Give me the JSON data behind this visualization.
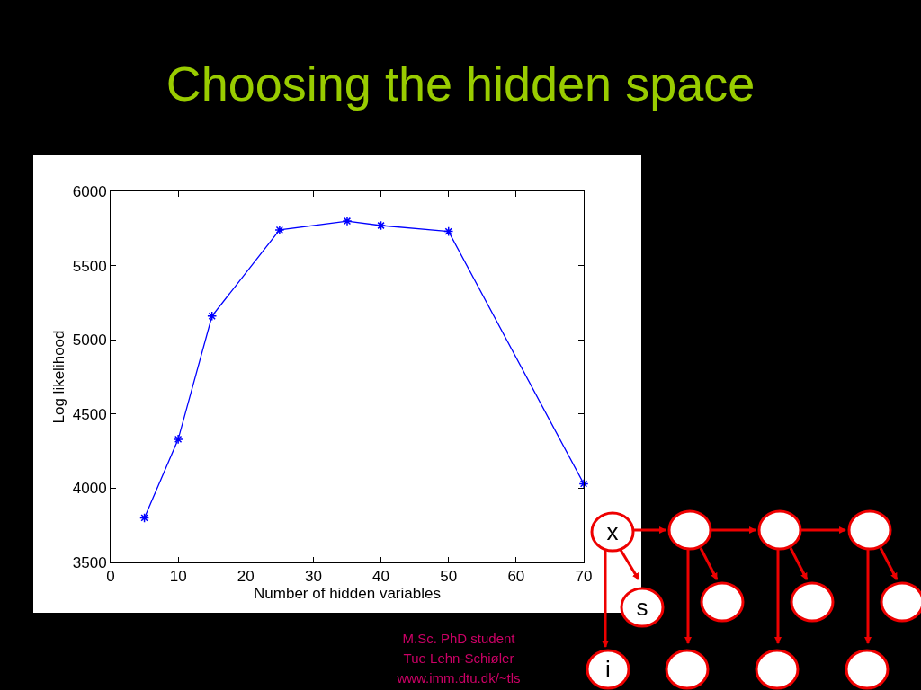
{
  "chart_data": {
    "type": "line",
    "title": "Choosing the hidden space",
    "xlabel": "Number of hidden variables",
    "ylabel": "Log likelihood",
    "x": [
      5,
      10,
      15,
      25,
      35,
      40,
      50,
      70
    ],
    "values": [
      3800,
      4330,
      5160,
      5740,
      5800,
      5770,
      5730,
      4030
    ],
    "color": "#0000ff",
    "marker": "cross",
    "line_style": "solid",
    "grid": false,
    "xlim": [
      0,
      70
    ],
    "xticks": [
      0,
      10,
      20,
      30,
      40,
      50,
      60,
      70
    ],
    "ylim": [
      3500,
      6000
    ],
    "yticks": [
      3500,
      4000,
      4500,
      5000,
      5500,
      6000
    ],
    "annotations": [
      "M.Sc. PhD student",
      "Tue Lehn-Schiøler",
      "www.imm.dtu.dk/~tls",
      "x",
      "s",
      "i"
    ]
  }
}
